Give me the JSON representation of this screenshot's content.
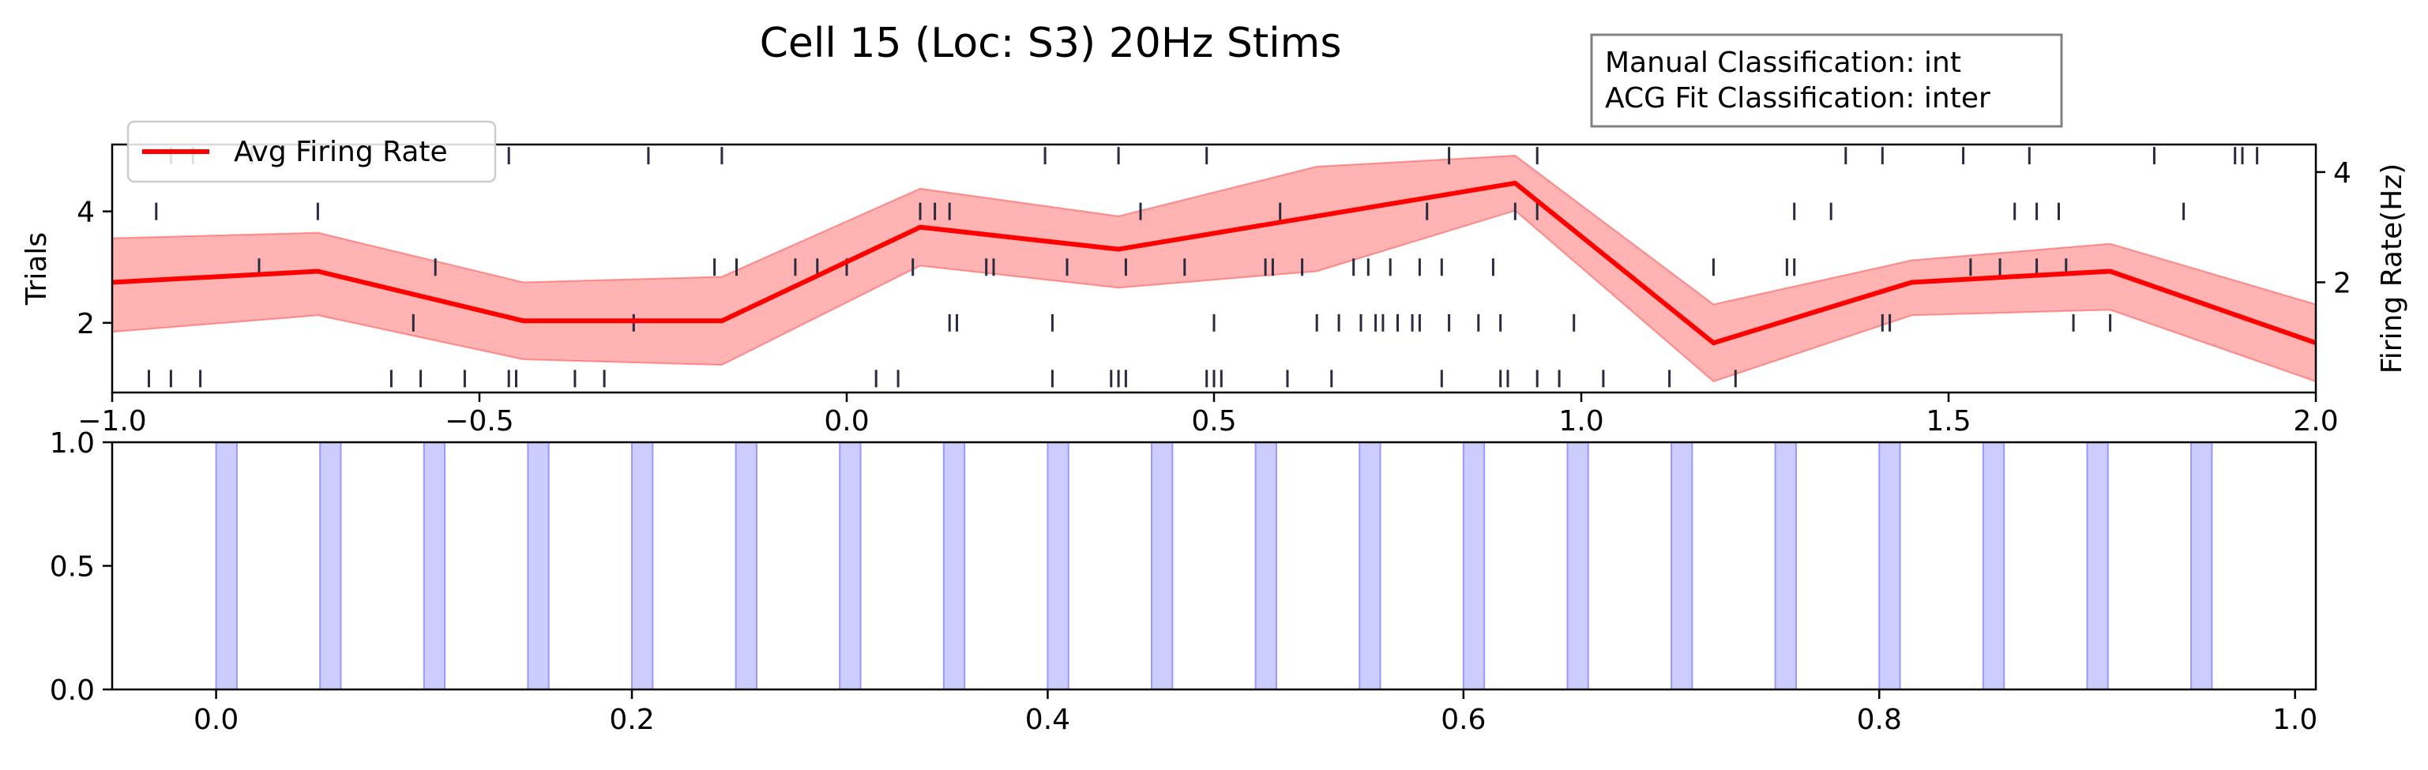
{
  "title": "Cell 15 (Loc: S3) 20Hz Stims",
  "info_box": {
    "line1": "Manual Classification: int",
    "line2": "ACG Fit Classification: inter"
  },
  "colors": {
    "rate_line": "#ff0000",
    "rate_band": "#ff9999",
    "raster": "#2b2b3f",
    "stim_fill": "#ccccff",
    "stim_edge": "#9999ff"
  },
  "chart_data": [
    {
      "type": "line",
      "name": "raster-and-firing-rate",
      "ylabel_left": "Trials",
      "ylabel_right": "Firing Rate(Hz)",
      "xlim": [
        -1.0,
        2.0
      ],
      "ylim_left": [
        0.75,
        5.2
      ],
      "ylim_right": [
        0.0,
        4.5
      ],
      "xticks": [
        -1.0,
        -0.5,
        0.0,
        0.5,
        1.0,
        1.5,
        2.0
      ],
      "xtick_labels": [
        "−1.0",
        "−0.5",
        "0.0",
        "0.5",
        "1.0",
        "1.5",
        "2.0"
      ],
      "yticks_left": [
        2,
        4
      ],
      "yticks_right": [
        2,
        4
      ],
      "legend": {
        "label": "Avg Firing Rate",
        "position": "upper-left"
      },
      "series": [
        {
          "name": "Avg Firing Rate",
          "x": [
            -1.0,
            -0.72,
            -0.44,
            -0.17,
            0.1,
            0.37,
            0.64,
            0.91,
            1.18,
            1.45,
            1.72,
            2.0
          ],
          "y": [
            2.0,
            2.2,
            1.3,
            1.3,
            3.0,
            2.6,
            3.2,
            3.8,
            0.9,
            2.0,
            2.2,
            0.9
          ],
          "lower": [
            1.1,
            1.4,
            0.6,
            0.5,
            2.3,
            1.9,
            2.2,
            3.3,
            0.2,
            1.4,
            1.5,
            0.2
          ],
          "upper": [
            2.8,
            2.9,
            2.0,
            2.1,
            3.7,
            3.2,
            4.1,
            4.3,
            1.6,
            2.4,
            2.7,
            1.6
          ]
        }
      ],
      "raster": [
        {
          "trial": 1,
          "times": [
            -0.95,
            -0.92,
            -0.88,
            -0.62,
            -0.58,
            -0.52,
            -0.46,
            -0.45,
            -0.37,
            -0.33,
            0.04,
            0.07,
            0.28,
            0.36,
            0.37,
            0.38,
            0.49,
            0.5,
            0.51,
            0.6,
            0.66,
            0.81,
            0.89,
            0.9,
            0.94,
            0.97,
            1.03,
            1.12,
            1.21
          ]
        },
        {
          "trial": 2,
          "times": [
            -0.59,
            -0.29,
            0.14,
            0.15,
            0.28,
            0.5,
            0.64,
            0.67,
            0.7,
            0.72,
            0.73,
            0.75,
            0.77,
            0.78,
            0.82,
            0.86,
            0.89,
            0.99,
            1.41,
            1.42,
            1.67,
            1.72
          ]
        },
        {
          "trial": 3,
          "times": [
            -0.8,
            -0.56,
            -0.18,
            -0.15,
            -0.07,
            -0.04,
            0.0,
            0.09,
            0.19,
            0.2,
            0.3,
            0.38,
            0.46,
            0.57,
            0.58,
            0.62,
            0.69,
            0.71,
            0.74,
            0.78,
            0.81,
            0.88,
            1.18,
            1.28,
            1.29,
            1.53,
            1.57,
            1.62,
            1.66
          ]
        },
        {
          "trial": 4,
          "times": [
            -0.94,
            -0.72,
            0.1,
            0.12,
            0.14,
            0.4,
            0.59,
            0.79,
            0.91,
            0.94,
            1.29,
            1.34,
            1.59,
            1.62,
            1.65,
            1.82
          ]
        },
        {
          "trial": 5,
          "times": [
            -0.92,
            -0.89,
            -0.81,
            -0.46,
            -0.27,
            -0.17,
            0.27,
            0.37,
            0.49,
            0.82,
            0.94,
            1.36,
            1.41,
            1.52,
            1.61,
            1.78,
            1.89,
            1.9,
            1.92
          ]
        }
      ]
    },
    {
      "type": "area",
      "name": "stimulus-windows",
      "xlim": [
        -0.05,
        1.01
      ],
      "ylim": [
        0.0,
        1.0
      ],
      "xticks": [
        0.0,
        0.2,
        0.4,
        0.6,
        0.8,
        1.0
      ],
      "xtick_labels": [
        "0.0",
        "0.2",
        "0.4",
        "0.6",
        "0.8",
        "1.0"
      ],
      "yticks": [
        0.0,
        0.5,
        1.0
      ],
      "ytick_labels": [
        "0.0",
        "0.5",
        "1.0"
      ],
      "stim_width": 0.01,
      "stim_starts": [
        0.0,
        0.05,
        0.1,
        0.15,
        0.2,
        0.25,
        0.3,
        0.35,
        0.4,
        0.45,
        0.5,
        0.55,
        0.6,
        0.65,
        0.7,
        0.75,
        0.8,
        0.85,
        0.9,
        0.95
      ]
    }
  ]
}
